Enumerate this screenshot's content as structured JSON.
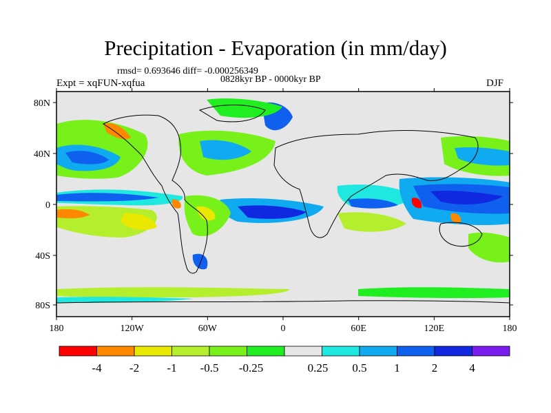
{
  "title": "Precipitation - Evaporation (in mm/day)",
  "stats": "rmsd= 0.693646 diff= -0.000256349",
  "period": "0828kyr BP - 0000kyr BP",
  "experiment": "Expt = xqFUN-xqfua",
  "season": "DJF",
  "axes": {
    "x_ticks": [
      "180",
      "120W",
      "60W",
      "0",
      "60E",
      "120E",
      "180"
    ],
    "y_ticks": [
      "80N",
      "40N",
      "0",
      "40S",
      "80S"
    ]
  },
  "colorbar": {
    "colors": [
      "#ff0000",
      "#ff8800",
      "#e8e800",
      "#b4ee2c",
      "#78f01a",
      "#20ee20",
      "#e6e6e6",
      "#1ee8e0",
      "#10aaf0",
      "#1060f0",
      "#1028e0",
      "#7a1cf0"
    ],
    "labels": [
      "-4",
      "-2",
      "-1",
      "-0.5",
      "-0.25",
      "0.25",
      "0.5",
      "1",
      "2",
      "4"
    ]
  },
  "map_colors": {
    "land_bg": "#e6e6e6",
    "coast": "#000000"
  }
}
